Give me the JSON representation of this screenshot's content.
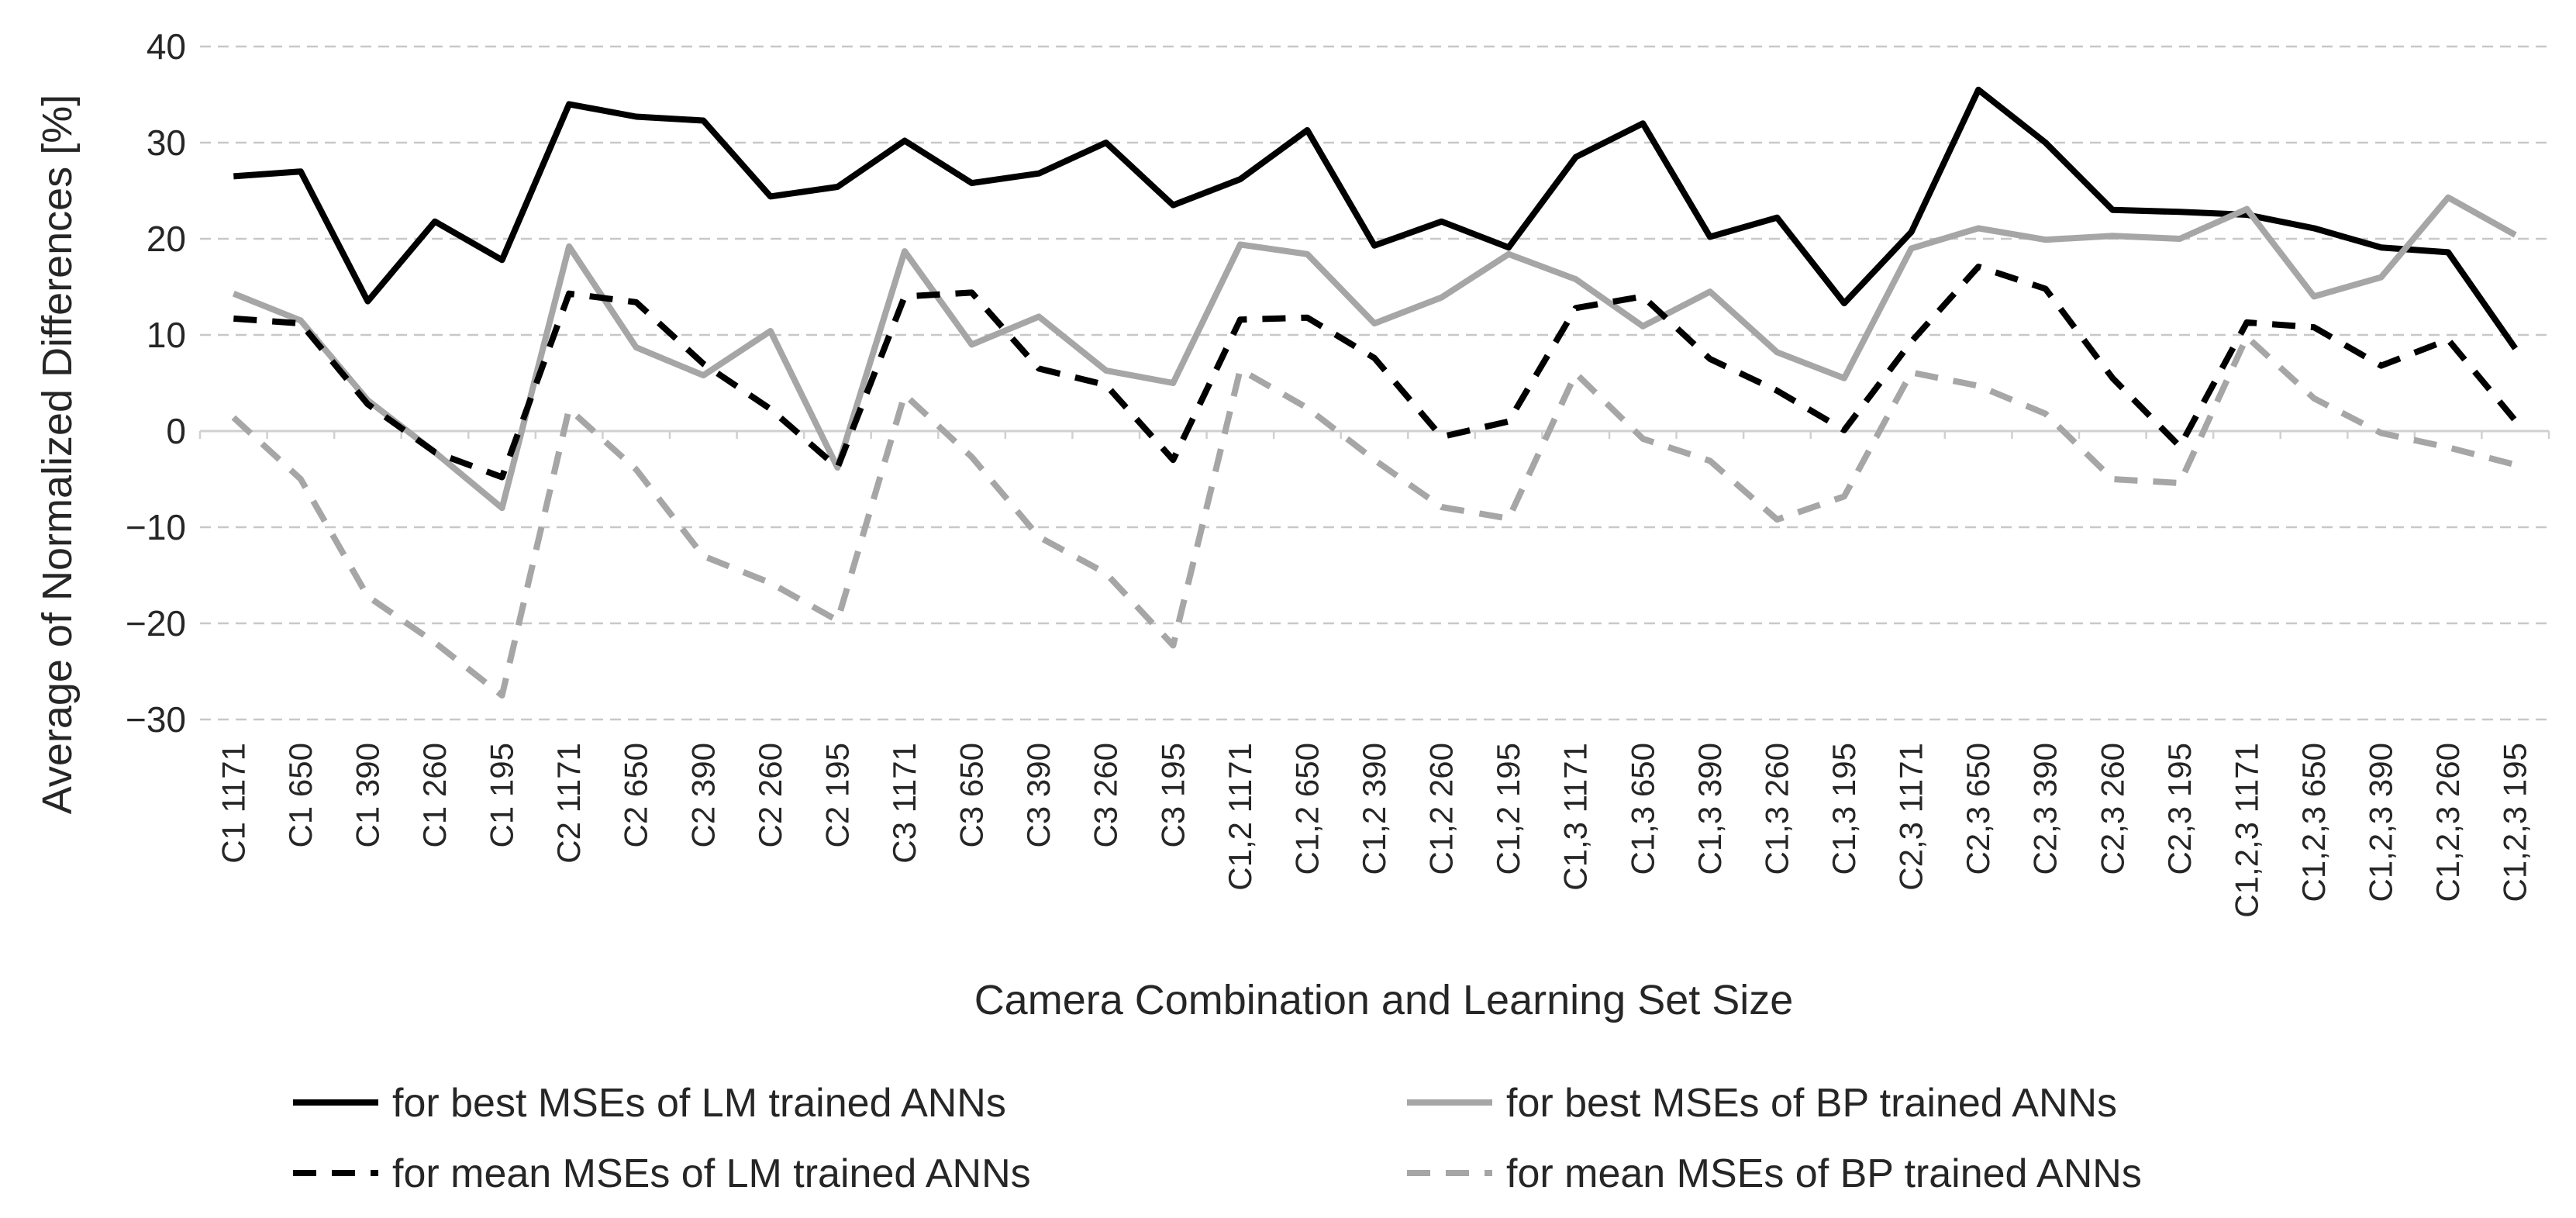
{
  "chart_data": {
    "type": "line",
    "title": "",
    "xlabel": "Camera Combination and Learning Set Size",
    "ylabel": "Average of Normalized Differences [%]",
    "ylim": [
      -30,
      40
    ],
    "yticks": [
      -30,
      -20,
      -10,
      0,
      10,
      20,
      30,
      40
    ],
    "ytick_labels": [
      "−30",
      "−20",
      "−10",
      "0",
      "10",
      "20",
      "30",
      "40"
    ],
    "grid": true,
    "legend_position": "bottom",
    "categories": [
      "C1 1171",
      "C1 650",
      "C1 390",
      "C1 260",
      "C1 195",
      "C2 1171",
      "C2 650",
      "C2 390",
      "C2 260",
      "C2 195",
      "C3 1171",
      "C3 650",
      "C3 390",
      "C3 260",
      "C3 195",
      "C1,2 1171",
      "C1,2 650",
      "C1,2 390",
      "C1,2 260",
      "C1,2 195",
      "C1,3 1171",
      "C1,3 650",
      "C1,3 390",
      "C1,3 260",
      "C1,3 195",
      "C2,3 1171",
      "C2,3 650",
      "C2,3 390",
      "C2,3 260",
      "C2,3 195",
      "C1,2,3 1171",
      "C1,2,3 650",
      "C1,2,3 390",
      "C1,2,3 260",
      "C1,2,3 195"
    ],
    "series": [
      {
        "name": "for best MSEs of LM trained ANNs",
        "color": "#000000",
        "dash": "solid",
        "values": [
          26.5,
          27,
          13.5,
          21.8,
          17.8,
          34,
          32.7,
          32.3,
          24.4,
          25.4,
          30.2,
          25.8,
          26.8,
          30,
          23.5,
          26.2,
          31.3,
          19.3,
          21.8,
          19.1,
          28.5,
          32,
          20.2,
          22.2,
          13.3,
          20.7,
          35.5,
          30,
          23,
          22.8,
          22.5,
          21.1,
          19.1,
          18.6,
          8.6
        ]
      },
      {
        "name": "for best MSEs of BP trained ANNs",
        "color": "#a6a6a6",
        "dash": "solid",
        "values": [
          14.3,
          11.5,
          3.2,
          -2.2,
          -8,
          19.2,
          8.7,
          5.8,
          10.4,
          -3.8,
          18.7,
          9,
          11.9,
          6.3,
          5,
          19.4,
          18.4,
          11.2,
          13.9,
          18.4,
          15.8,
          10.9,
          14.5,
          8.2,
          5.5,
          19,
          21.1,
          19.9,
          20.3,
          20,
          23.1,
          14,
          16,
          24.3,
          20.4
        ]
      },
      {
        "name": "for mean MSEs of LM trained ANNs",
        "color": "#000000",
        "dash": "dashed",
        "values": [
          11.7,
          11.2,
          2.8,
          -2.2,
          -4.8,
          14.3,
          13.4,
          7,
          2.3,
          -3.8,
          14,
          14.4,
          6.5,
          4.8,
          -3,
          11.6,
          11.8,
          7.6,
          -0.6,
          1,
          12.8,
          14,
          7.5,
          4.2,
          0.1,
          9.3,
          17.1,
          14.8,
          5.5,
          -1.6,
          11.3,
          10.8,
          6.8,
          9.5,
          1.1
        ]
      },
      {
        "name": "for mean MSEs of BP trained ANNs",
        "color": "#a6a6a6",
        "dash": "dashed",
        "values": [
          1.4,
          -5,
          -17.2,
          -22,
          -27.5,
          2.3,
          -4,
          -13,
          -15.8,
          -19.7,
          3.8,
          -2.7,
          -11,
          -14.8,
          -22.3,
          6.4,
          2.4,
          -3,
          -7.9,
          -9.1,
          6,
          -0.8,
          -3.1,
          -9.2,
          -6.8,
          6.1,
          4.7,
          1.8,
          -5,
          -5.4,
          9.8,
          3.4,
          -0.2,
          -1.7,
          -3.5
        ]
      }
    ]
  }
}
